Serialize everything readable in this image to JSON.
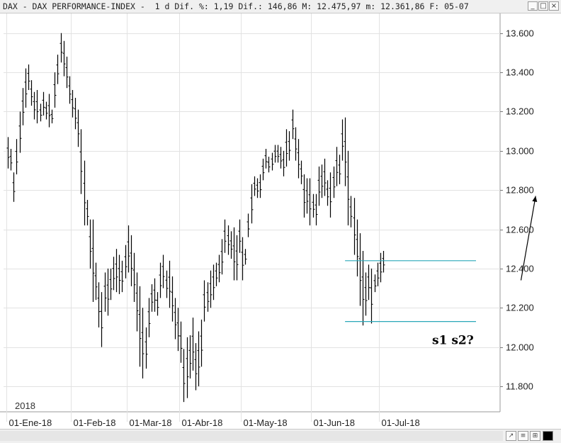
{
  "header": {
    "text": "DAX - DAX PERFORMANCE-INDEX -  1 d Dif. %: 1,19 Dif.: 146,86 M: 12.475,97 m: 12.361,86 F: 05-07"
  },
  "window_controls": {
    "minimize": "_",
    "maximize": "□",
    "close": "×"
  },
  "chart_data": {
    "type": "ohlc",
    "year_label": "2018",
    "x_tick_labels": [
      "01-Ene-18",
      "01-Feb-18",
      "01-Mar-18",
      "01-Abr-18",
      "01-May-18",
      "01-Jun-18",
      "01-Jul-18"
    ],
    "y_tick_labels": [
      "11.800",
      "12.000",
      "12.200",
      "12.400",
      "12.600",
      "12.800",
      "13.000",
      "13.200",
      "13.400",
      "13.600"
    ],
    "y_ticks": [
      11800,
      12000,
      12200,
      12400,
      12600,
      12800,
      13000,
      13200,
      13400,
      13600
    ],
    "ylim": [
      11670,
      13700
    ],
    "grid": true,
    "bar_color": "#000000",
    "line_color": "#2aa8b8",
    "annotations": {
      "text": "s1 s2?",
      "support": 12130,
      "resistance": 12440,
      "arrow_from": [
        175,
        12340
      ],
      "arrow_to": [
        180,
        12770
      ]
    },
    "highs": [
      13070,
      13010,
      12890,
      13060,
      13200,
      13320,
      13420,
      13440,
      13360,
      13300,
      13310,
      13240,
      13300,
      13250,
      13290,
      13210,
      13400,
      13490,
      13600,
      13560,
      13480,
      13380,
      13310,
      13270,
      13210,
      13110,
      12950,
      12750,
      12650,
      12650,
      12430,
      12330,
      12280,
      12380,
      12400,
      12400,
      12460,
      12500,
      12470,
      12440,
      12520,
      12620,
      12570,
      12480,
      12380,
      12310,
      12200,
      12100,
      12250,
      12320,
      12350,
      12280,
      12430,
      12470,
      12390,
      12440,
      12360,
      12250,
      12200,
      12130,
      11990,
      12050,
      12060,
      12150,
      12020,
      12080,
      12140,
      12340,
      12330,
      12390,
      12420,
      12430,
      12470,
      12550,
      12650,
      12620,
      12590,
      12610,
      12570,
      12650,
      12560,
      12500,
      12680,
      12830,
      12870,
      12860,
      12880,
      12960,
      13010,
      12970,
      12990,
      13030,
      13030,
      13020,
      13000,
      13110,
      13100,
      13210,
      13120,
      13060,
      12950,
      12880,
      12860,
      12860,
      12780,
      12780,
      12920,
      12930,
      12960,
      12850,
      12890,
      12920,
      13020,
      12980,
      13160,
      13170,
      13000,
      12770,
      12760,
      12650,
      12580,
      12490,
      12380,
      12420,
      12400,
      12370,
      12430,
      12480,
      12490
    ],
    "lows": [
      12910,
      12900,
      12740,
      12880,
      12990,
      13130,
      13220,
      13310,
      13230,
      13160,
      13140,
      13150,
      13180,
      13160,
      13120,
      13140,
      13220,
      13340,
      13450,
      13380,
      13320,
      13240,
      13170,
      13110,
      13020,
      12780,
      12620,
      12620,
      12400,
      12230,
      12240,
      12100,
      12000,
      12180,
      12160,
      12240,
      12290,
      12280,
      12270,
      12280,
      12350,
      12380,
      12310,
      12230,
      12080,
      11900,
      11840,
      11890,
      12050,
      12180,
      12180,
      12160,
      12250,
      12300,
      12250,
      12200,
      12130,
      12040,
      11980,
      11920,
      11720,
      11740,
      11840,
      11880,
      11780,
      11800,
      11900,
      12130,
      12180,
      12200,
      12240,
      12310,
      12330,
      12370,
      12480,
      12470,
      12450,
      12340,
      12340,
      12480,
      12340,
      12420,
      12560,
      12630,
      12770,
      12760,
      12760,
      12850,
      12910,
      12890,
      12900,
      12940,
      12940,
      12910,
      12870,
      12920,
      12950,
      13060,
      12950,
      12860,
      12830,
      12660,
      12680,
      12620,
      12660,
      12620,
      12720,
      12760,
      12770,
      12720,
      12660,
      12760,
      12820,
      12830,
      12950,
      12820,
      12620,
      12610,
      12470,
      12360,
      12210,
      12110,
      12160,
      12240,
      12120,
      12280,
      12310,
      12330,
      12380
    ]
  },
  "bottom_buttons": [
    "↗",
    "≡",
    "⊞",
    "■"
  ]
}
